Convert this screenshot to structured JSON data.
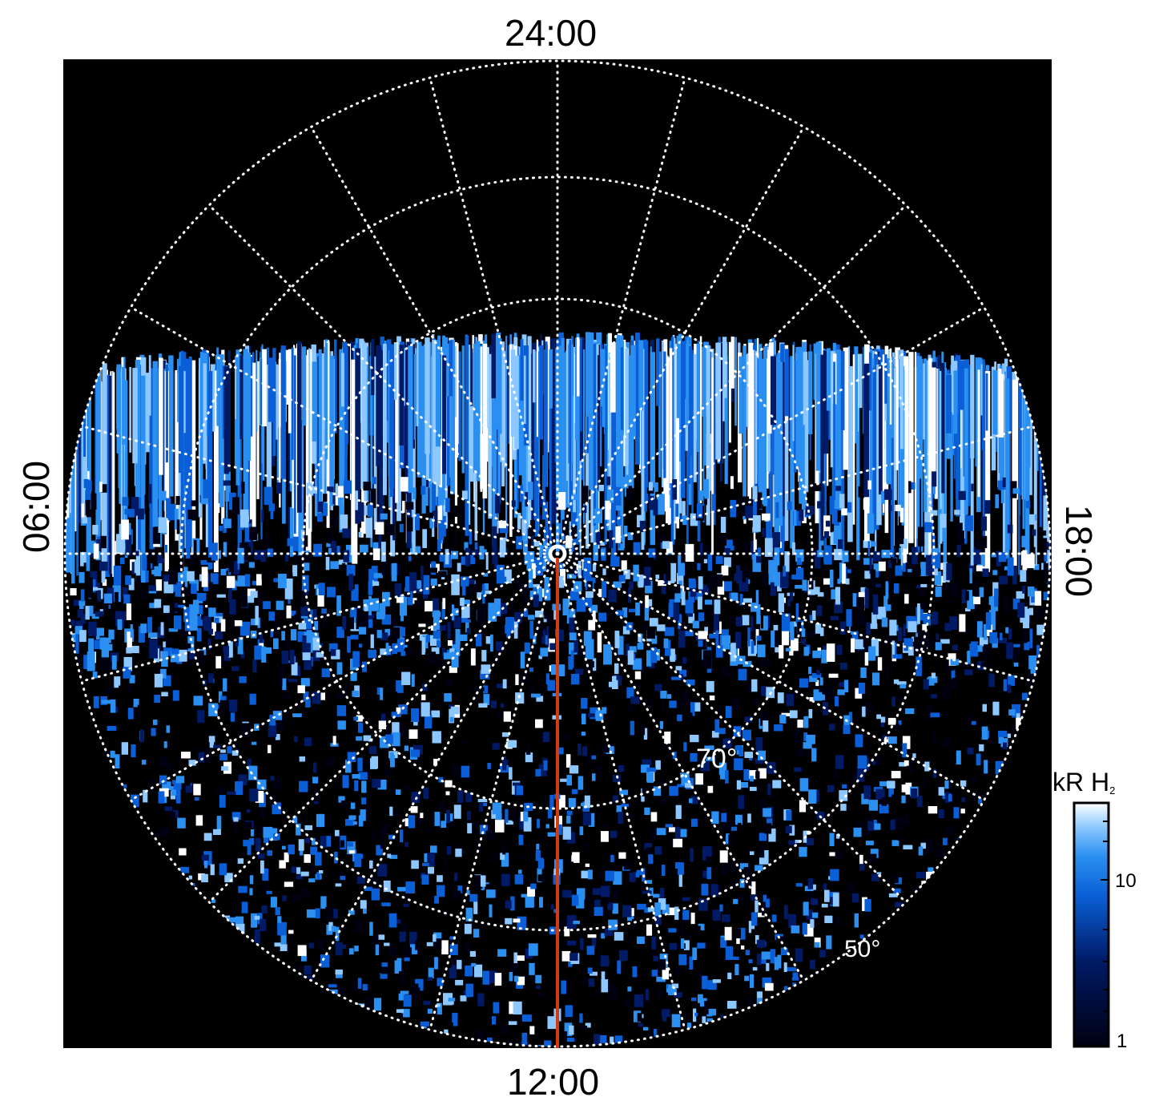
{
  "labels": {
    "top": "24:00",
    "bottom": "12:00",
    "left": "06:00",
    "right": "18:00",
    "lat_70": "70°",
    "lat_50": "50°"
  },
  "colorbar": {
    "unit": "kR H",
    "unit_sub": "2",
    "ticks": [
      "10",
      "1"
    ],
    "colors": [
      "#000010",
      "#001a66",
      "#0a5fd6",
      "#2a8ff0",
      "#8cc8ff",
      "#ffffff"
    ]
  },
  "overlay_colors": {
    "noon_meridian": "#d23a12",
    "grid": "#ffffff",
    "background": "#000000"
  }
}
